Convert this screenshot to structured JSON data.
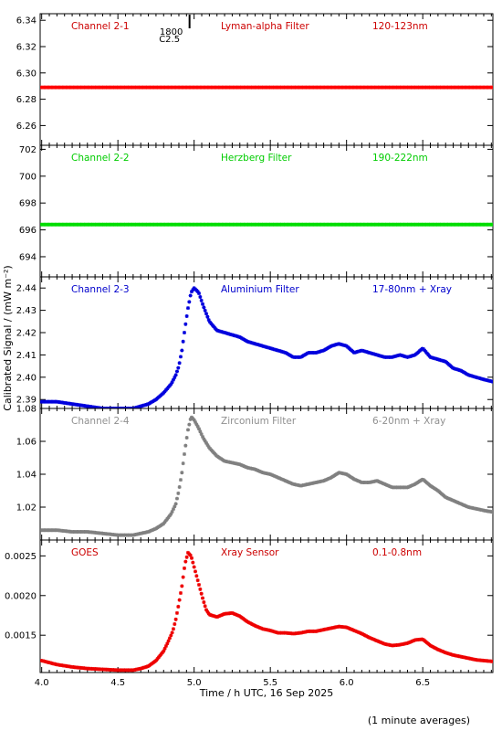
{
  "y_axis_label": "Calibrated Signal / (mW m⁻²)",
  "x_axis_label": "Time / h UTC, 16 Sep 2025",
  "footnote": "(1 minute averages)",
  "marker": {
    "x": 4.97,
    "label_top": "1800",
    "label_bottom": "C2.5"
  },
  "x_range": [
    3.99,
    6.96
  ],
  "x_ticks": [
    "4.0",
    "4.5",
    "5.0",
    "5.5",
    "6.0",
    "6.5"
  ],
  "chart_data": [
    {
      "type": "scatter",
      "channel": "Channel 2-1",
      "filter": "Lyman-alpha Filter",
      "band": "120-123nm",
      "color": "#ff0000",
      "text_color": "#cc0000",
      "ylim": [
        6.245,
        6.345
      ],
      "yticks": [
        6.26,
        6.28,
        6.3,
        6.32,
        6.34
      ],
      "ytick_labels": [
        "6.26",
        "6.28",
        "6.30",
        "6.32",
        "6.34"
      ],
      "series": {
        "x": [
          4.0,
          6.96
        ],
        "y": [
          6.289,
          6.289
        ]
      }
    },
    {
      "type": "scatter",
      "channel": "Channel 2-2",
      "filter": "Herzberg Filter",
      "band": "190-222nm",
      "color": "#00dd00",
      "text_color": "#00cc00",
      "ylim": [
        692.5,
        702.3
      ],
      "yticks": [
        694,
        696,
        698,
        700,
        702
      ],
      "ytick_labels": [
        "694",
        "696",
        "698",
        "700",
        "702"
      ],
      "series": {
        "x": [
          4.0,
          6.96
        ],
        "y": [
          696.4,
          696.4
        ]
      }
    },
    {
      "type": "scatter",
      "channel": "Channel 2-3",
      "filter": "Aluminium Filter",
      "band": "17-80nm + Xray",
      "color": "#0000dd",
      "text_color": "#0000cc",
      "ylim": [
        2.386,
        2.445
      ],
      "yticks": [
        2.39,
        2.4,
        2.41,
        2.42,
        2.43,
        2.44
      ],
      "ytick_labels": [
        "2.39",
        "2.40",
        "2.41",
        "2.42",
        "2.43",
        "2.44"
      ],
      "series": {
        "x": [
          4.0,
          4.1,
          4.2,
          4.3,
          4.4,
          4.5,
          4.6,
          4.65,
          4.7,
          4.75,
          4.8,
          4.85,
          4.88,
          4.9,
          4.92,
          4.94,
          4.96,
          4.98,
          5.0,
          5.03,
          5.06,
          5.1,
          5.15,
          5.2,
          5.25,
          5.3,
          5.35,
          5.4,
          5.45,
          5.5,
          5.55,
          5.6,
          5.65,
          5.7,
          5.75,
          5.8,
          5.85,
          5.9,
          5.95,
          6.0,
          6.05,
          6.1,
          6.15,
          6.2,
          6.25,
          6.3,
          6.35,
          6.4,
          6.45,
          6.5,
          6.55,
          6.6,
          6.65,
          6.7,
          6.75,
          6.8,
          6.85,
          6.9,
          6.96
        ],
        "y": [
          2.389,
          2.389,
          2.388,
          2.387,
          2.386,
          2.386,
          2.386,
          2.387,
          2.388,
          2.39,
          2.393,
          2.397,
          2.401,
          2.405,
          2.412,
          2.422,
          2.431,
          2.438,
          2.44,
          2.438,
          2.432,
          2.425,
          2.421,
          2.42,
          2.419,
          2.418,
          2.416,
          2.415,
          2.414,
          2.413,
          2.412,
          2.411,
          2.409,
          2.409,
          2.411,
          2.411,
          2.412,
          2.414,
          2.415,
          2.414,
          2.411,
          2.412,
          2.411,
          2.41,
          2.409,
          2.409,
          2.41,
          2.409,
          2.41,
          2.413,
          2.409,
          2.408,
          2.407,
          2.404,
          2.403,
          2.401,
          2.4,
          2.399,
          2.398
        ]
      }
    },
    {
      "type": "scatter",
      "channel": "Channel 2-4",
      "filter": "Zirconium Filter",
      "band": "6-20nm + Xray",
      "color": "#808080",
      "text_color": "#909090",
      "ylim": [
        1.0,
        1.08
      ],
      "yticks": [
        1.02,
        1.04,
        1.06,
        1.08
      ],
      "ytick_labels": [
        "1.02",
        "1.04",
        "1.06",
        "1.08"
      ],
      "series": {
        "x": [
          4.0,
          4.1,
          4.2,
          4.3,
          4.4,
          4.5,
          4.6,
          4.65,
          4.7,
          4.75,
          4.8,
          4.85,
          4.88,
          4.9,
          4.92,
          4.94,
          4.96,
          4.98,
          5.0,
          5.03,
          5.06,
          5.1,
          5.15,
          5.2,
          5.25,
          5.3,
          5.35,
          5.4,
          5.45,
          5.5,
          5.55,
          5.6,
          5.65,
          5.7,
          5.75,
          5.8,
          5.85,
          5.9,
          5.95,
          6.0,
          6.05,
          6.1,
          6.15,
          6.2,
          6.25,
          6.3,
          6.35,
          6.4,
          6.45,
          6.5,
          6.55,
          6.6,
          6.65,
          6.7,
          6.75,
          6.8,
          6.85,
          6.9,
          6.96
        ],
        "y": [
          1.006,
          1.006,
          1.005,
          1.005,
          1.004,
          1.003,
          1.003,
          1.004,
          1.005,
          1.007,
          1.01,
          1.016,
          1.022,
          1.03,
          1.041,
          1.055,
          1.067,
          1.075,
          1.073,
          1.068,
          1.062,
          1.056,
          1.051,
          1.048,
          1.047,
          1.046,
          1.044,
          1.043,
          1.041,
          1.04,
          1.038,
          1.036,
          1.034,
          1.033,
          1.034,
          1.035,
          1.036,
          1.038,
          1.041,
          1.04,
          1.037,
          1.035,
          1.035,
          1.036,
          1.034,
          1.032,
          1.032,
          1.032,
          1.034,
          1.037,
          1.033,
          1.03,
          1.026,
          1.024,
          1.022,
          1.02,
          1.019,
          1.018,
          1.017
        ]
      }
    },
    {
      "type": "scatter",
      "channel": "GOES",
      "filter": "Xray Sensor",
      "band": "0.1-0.8nm",
      "color": "#ee0000",
      "text_color": "#cc0000",
      "ylim": [
        0.00103,
        0.0027
      ],
      "yticks": [
        0.0015,
        0.002,
        0.0025
      ],
      "ytick_labels": [
        "0.0015",
        "0.0020",
        "0.0025"
      ],
      "series": {
        "x": [
          4.0,
          4.1,
          4.2,
          4.3,
          4.4,
          4.5,
          4.6,
          4.65,
          4.7,
          4.75,
          4.8,
          4.83,
          4.86,
          4.88,
          4.9,
          4.92,
          4.94,
          4.96,
          4.98,
          5.0,
          5.02,
          5.04,
          5.06,
          5.08,
          5.1,
          5.15,
          5.2,
          5.25,
          5.3,
          5.35,
          5.4,
          5.45,
          5.5,
          5.55,
          5.6,
          5.65,
          5.7,
          5.75,
          5.8,
          5.85,
          5.9,
          5.95,
          6.0,
          6.05,
          6.1,
          6.15,
          6.2,
          6.25,
          6.3,
          6.35,
          6.4,
          6.45,
          6.5,
          6.55,
          6.6,
          6.65,
          6.7,
          6.75,
          6.8,
          6.85,
          6.9,
          6.96
        ],
        "y": [
          0.00118,
          0.00113,
          0.0011,
          0.00108,
          0.00107,
          0.00106,
          0.00106,
          0.00108,
          0.00111,
          0.00118,
          0.0013,
          0.00142,
          0.00155,
          0.0017,
          0.0019,
          0.00212,
          0.0024,
          0.00254,
          0.0025,
          0.00236,
          0.00222,
          0.00208,
          0.00194,
          0.00182,
          0.00176,
          0.00173,
          0.00177,
          0.00178,
          0.00174,
          0.00167,
          0.00162,
          0.00158,
          0.00156,
          0.00153,
          0.00153,
          0.00152,
          0.00153,
          0.00155,
          0.00155,
          0.00157,
          0.00159,
          0.00161,
          0.0016,
          0.00156,
          0.00152,
          0.00147,
          0.00143,
          0.00139,
          0.00137,
          0.00138,
          0.0014,
          0.00144,
          0.00145,
          0.00137,
          0.00132,
          0.00128,
          0.00125,
          0.00123,
          0.00121,
          0.00119,
          0.00118,
          0.00117
        ]
      }
    }
  ]
}
